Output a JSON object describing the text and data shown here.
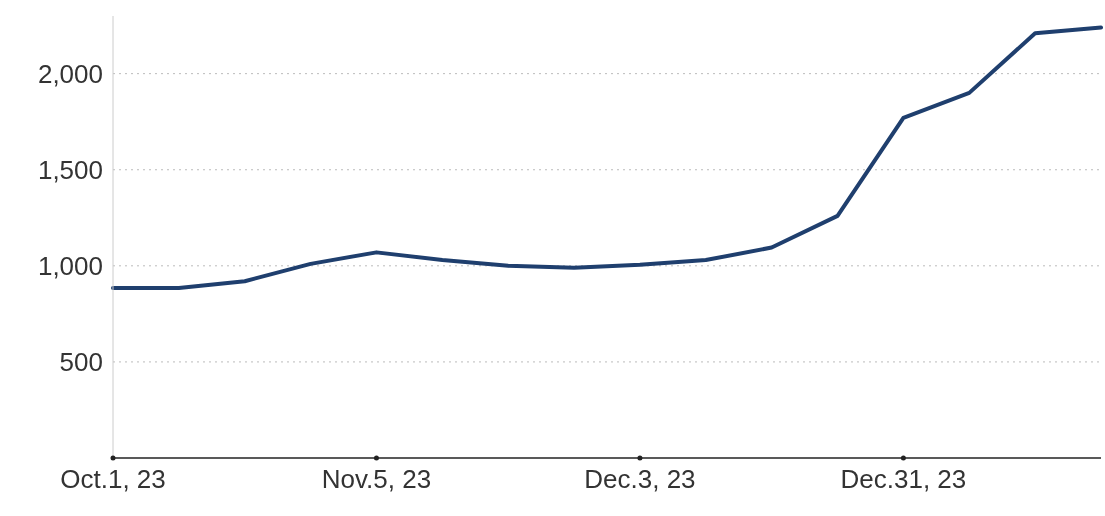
{
  "chart_data": {
    "type": "line",
    "categories": [
      "Oct.1, 23",
      null,
      null,
      null,
      "Nov.5, 23",
      null,
      null,
      null,
      "Dec.3, 23",
      null,
      null,
      null,
      "Dec.31, 23",
      null,
      null,
      null
    ],
    "series": [
      {
        "color": "#1f3f6e",
        "values": [
          885,
          885,
          920,
          1010,
          1070,
          1030,
          1000,
          990,
          1005,
          1030,
          1095,
          1260,
          1770,
          1900,
          2210,
          2240
        ]
      }
    ],
    "ylim": [
      0,
      2300
    ],
    "yticks": [
      500,
      {
        "value": 1000,
        "label": "1,000"
      },
      {
        "value": 1500,
        "label": "1,500"
      },
      {
        "value": 2000,
        "label": "2,000"
      }
    ],
    "grid": "y",
    "legend": false,
    "marker": "none",
    "line_style": "solid"
  }
}
